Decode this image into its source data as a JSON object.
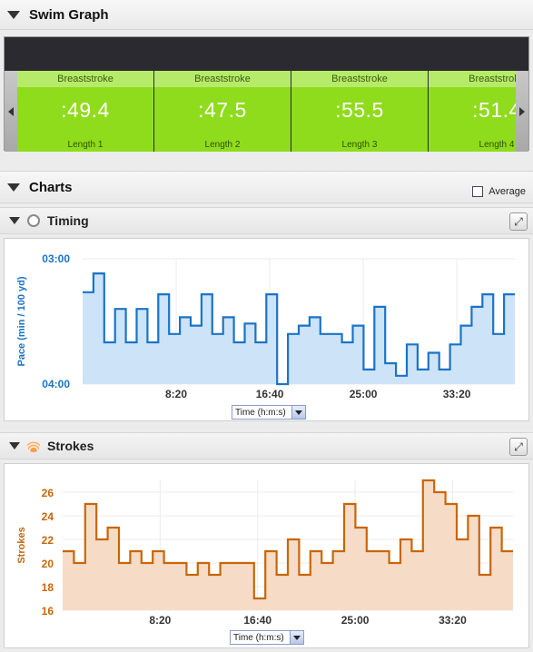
{
  "swim_graph": {
    "title": "Swim Graph",
    "lengths": [
      {
        "stroke": "Breaststroke",
        "time": ":49.4",
        "label": "Length 1"
      },
      {
        "stroke": "Breaststroke",
        "time": ":47.5",
        "label": "Length 2"
      },
      {
        "stroke": "Breaststroke",
        "time": ":55.5",
        "label": "Length 3"
      },
      {
        "stroke": "Breaststroke",
        "time": ":51.4",
        "label": "Length 4"
      }
    ]
  },
  "charts": {
    "title": "Charts",
    "average_label": "Average",
    "timing": {
      "title": "Timing",
      "axis_select": "Time (h:m:s)"
    },
    "strokes": {
      "title": "Strokes",
      "axis_select": "Time (h:m:s)"
    }
  },
  "colors": {
    "timing_line": "#1a74c8",
    "timing_fill": "#cde3f7",
    "strokes_line": "#c8660a",
    "strokes_fill": "#f6dcc6",
    "length_green": "#8fdc1c"
  },
  "chart_data": [
    {
      "type": "area",
      "title": "Timing",
      "ylabel": "Pace (min / 100 yd)",
      "xlabel": "Time (h:m:s)",
      "y_tick_labels": [
        "03:00",
        "04:00"
      ],
      "x_tick_labels": [
        "8:20",
        "16:40",
        "25:00",
        "33:20"
      ],
      "x_ticks_minutes": [
        8.333,
        16.667,
        25.0,
        33.333
      ],
      "xlim_minutes": [
        0,
        38.5
      ],
      "ylim_seconds": [
        180,
        240
      ],
      "inverted_y": true,
      "step": true,
      "series": [
        {
          "values_seconds": [
            196,
            187,
            220,
            204,
            220,
            204,
            220,
            197,
            216,
            208,
            212,
            197,
            216,
            208,
            220,
            211,
            220,
            197,
            240,
            216,
            212,
            208,
            216,
            216,
            220,
            212,
            233,
            203,
            230,
            236,
            221,
            233,
            225,
            233,
            221,
            212,
            203,
            197,
            216,
            197
          ]
        }
      ]
    },
    {
      "type": "area",
      "title": "Strokes",
      "ylabel": "Strokes",
      "xlabel": "Time (h:m:s)",
      "y_tick_labels": [
        "16",
        "18",
        "20",
        "22",
        "24",
        "26"
      ],
      "ylim": [
        16,
        27
      ],
      "x_tick_labels": [
        "8:20",
        "16:40",
        "25:00",
        "33:20"
      ],
      "x_ticks_minutes": [
        8.333,
        16.667,
        25.0,
        33.333
      ],
      "xlim_minutes": [
        0,
        38.5
      ],
      "step": true,
      "series": [
        {
          "values": [
            21,
            20,
            25,
            22,
            23,
            20,
            21,
            20,
            21,
            20,
            20,
            19,
            20,
            19,
            20,
            20,
            20,
            17,
            21,
            19,
            22,
            19,
            21,
            20,
            21,
            25,
            23,
            21,
            21,
            20,
            22,
            21,
            27,
            26,
            25,
            22,
            24,
            19,
            23,
            21
          ]
        }
      ]
    }
  ]
}
